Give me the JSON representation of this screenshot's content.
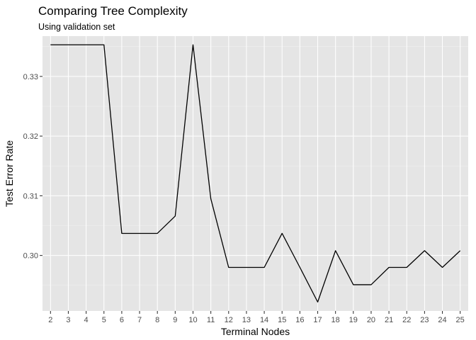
{
  "chart_data": {
    "type": "line",
    "title": "Comparing Tree Complexity",
    "subtitle": "Using validation set",
    "xlabel": "Terminal Nodes",
    "ylabel": "Test Error Rate",
    "x": [
      2,
      3,
      4,
      5,
      6,
      7,
      8,
      9,
      10,
      11,
      12,
      13,
      14,
      15,
      16,
      17,
      18,
      19,
      20,
      21,
      22,
      23,
      24,
      25
    ],
    "series": [
      {
        "values": [
          0.3353,
          0.3353,
          0.3353,
          0.3353,
          0.3037,
          0.3037,
          0.3037,
          0.3066,
          0.3353,
          0.3095,
          0.298,
          0.298,
          0.298,
          0.3037,
          0.298,
          0.2922,
          0.3008,
          0.2951,
          0.2951,
          0.298,
          0.298,
          0.3008,
          0.298,
          0.3008
        ]
      }
    ],
    "x_ticks": [
      "2",
      "3",
      "4",
      "5",
      "6",
      "7",
      "8",
      "9",
      "10",
      "11",
      "12",
      "13",
      "14",
      "15",
      "16",
      "17",
      "18",
      "19",
      "20",
      "21",
      "22",
      "23",
      "24",
      "25"
    ],
    "y_ticks": [
      {
        "value": 0.3,
        "label": "0.30"
      },
      {
        "value": 0.31,
        "label": "0.31"
      },
      {
        "value": 0.32,
        "label": "0.32"
      },
      {
        "value": 0.33,
        "label": "0.33"
      }
    ],
    "xlim": [
      1.55,
      25.45
    ],
    "ylim": [
      0.2907,
      0.33675
    ],
    "grid": true,
    "colors": {
      "panel": "#e5e5e5",
      "grid_major": "#ffffff",
      "line": "#000000"
    }
  }
}
